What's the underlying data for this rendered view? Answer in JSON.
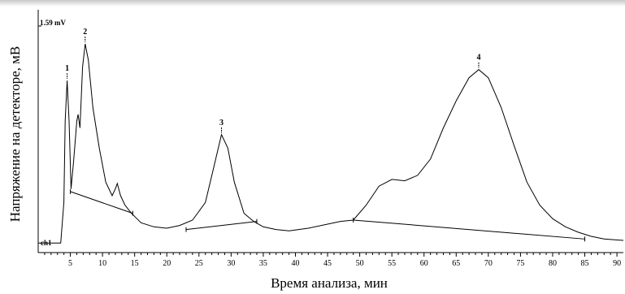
{
  "chart_data": {
    "type": "line",
    "xlabel": "Время анализа, мин",
    "ylabel": "Напряжение на детекторе, мВ",
    "xlim": [
      0,
      91
    ],
    "ylim": [
      -0.07,
      1.59
    ],
    "x_ticks": [
      5,
      10,
      15,
      20,
      25,
      30,
      35,
      40,
      45,
      50,
      55,
      60,
      65,
      70,
      75,
      80,
      85,
      90
    ],
    "scale_label": "1.59 mV",
    "channel_label": "ch1",
    "grid": false,
    "series": [
      {
        "points": [
          [
            0,
            0.0
          ],
          [
            3.5,
            0.0
          ],
          [
            4.0,
            0.3
          ],
          [
            4.2,
            0.9
          ],
          [
            4.5,
            1.2
          ],
          [
            4.8,
            0.9
          ],
          [
            5.1,
            0.4
          ],
          [
            5.5,
            0.6
          ],
          [
            6.0,
            0.9
          ],
          [
            6.2,
            0.95
          ],
          [
            6.5,
            0.85
          ],
          [
            6.9,
            1.3
          ],
          [
            7.3,
            1.47
          ],
          [
            7.8,
            1.35
          ],
          [
            8.5,
            1.0
          ],
          [
            9.5,
            0.7
          ],
          [
            10.5,
            0.45
          ],
          [
            11.5,
            0.35
          ],
          [
            12.0,
            0.4
          ],
          [
            12.3,
            0.44
          ],
          [
            12.8,
            0.35
          ],
          [
            13.5,
            0.28
          ],
          [
            14.5,
            0.22
          ],
          [
            16,
            0.15
          ],
          [
            18,
            0.12
          ],
          [
            20,
            0.11
          ],
          [
            22,
            0.13
          ],
          [
            24,
            0.17
          ],
          [
            26,
            0.3
          ],
          [
            27.5,
            0.6
          ],
          [
            28.5,
            0.8
          ],
          [
            29.5,
            0.7
          ],
          [
            30.5,
            0.45
          ],
          [
            32,
            0.22
          ],
          [
            33.5,
            0.16
          ],
          [
            35,
            0.12
          ],
          [
            37,
            0.1
          ],
          [
            39,
            0.09
          ],
          [
            42,
            0.11
          ],
          [
            45,
            0.14
          ],
          [
            47,
            0.16
          ],
          [
            49,
            0.17
          ],
          [
            51,
            0.28
          ],
          [
            53,
            0.42
          ],
          [
            55,
            0.47
          ],
          [
            57,
            0.46
          ],
          [
            59,
            0.5
          ],
          [
            61,
            0.62
          ],
          [
            63,
            0.85
          ],
          [
            65,
            1.05
          ],
          [
            67,
            1.22
          ],
          [
            68.5,
            1.28
          ],
          [
            70,
            1.22
          ],
          [
            72,
            1.0
          ],
          [
            74,
            0.72
          ],
          [
            76,
            0.45
          ],
          [
            78,
            0.28
          ],
          [
            80,
            0.18
          ],
          [
            82,
            0.12
          ],
          [
            84,
            0.08
          ],
          [
            86,
            0.05
          ],
          [
            88,
            0.03
          ],
          [
            91,
            0.02
          ]
        ]
      }
    ],
    "baselines": [
      [
        [
          5.0,
          0.38
        ],
        [
          14.7,
          0.22
        ]
      ],
      [
        [
          23,
          0.1
        ],
        [
          34,
          0.16
        ]
      ],
      [
        [
          49,
          0.17
        ],
        [
          85,
          0.03
        ]
      ]
    ],
    "peaks": [
      {
        "label": "1",
        "x": 4.5,
        "y": 1.2
      },
      {
        "label": "2",
        "x": 7.3,
        "y": 1.47
      },
      {
        "label": "3",
        "x": 28.5,
        "y": 0.8
      },
      {
        "label": "4",
        "x": 68.5,
        "y": 1.28
      }
    ]
  }
}
